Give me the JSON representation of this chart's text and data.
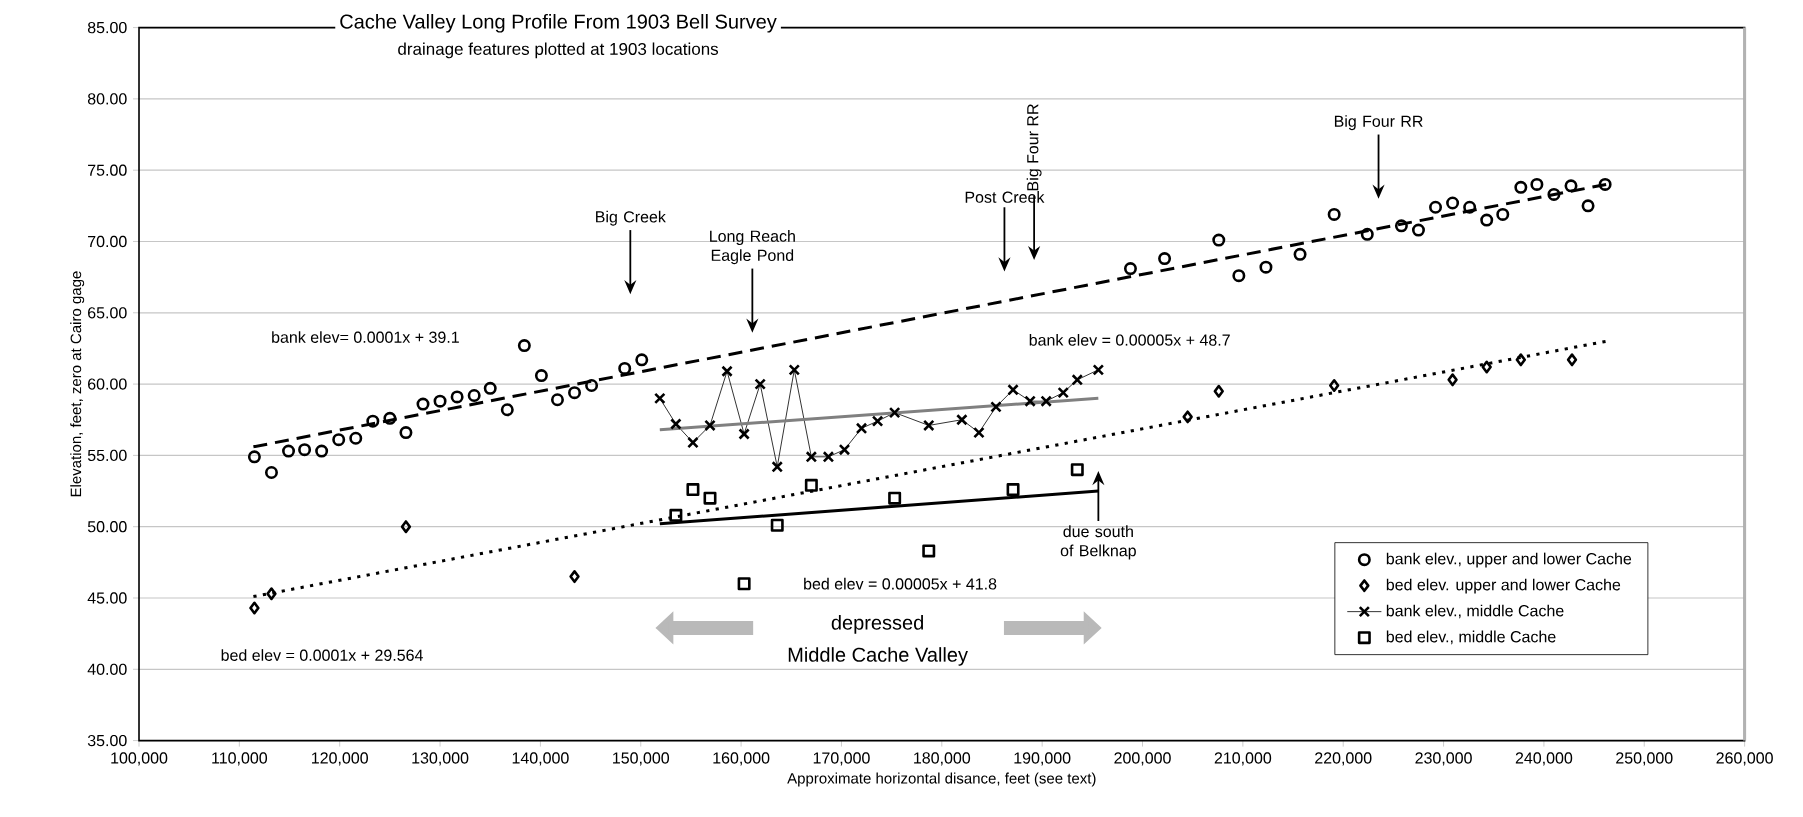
{
  "chart_data": {
    "type": "scatter",
    "title": "Cache Valley Long Profile From 1903 Bell Survey",
    "subtitle": "drainage features plotted at 1903 locations",
    "xlabel": "Approximate horizontal disance, feet (see text)",
    "ylabel": "Elevation, feet, zero at Cairo gage",
    "xlim": [
      100000,
      260000
    ],
    "ylim": [
      35,
      85
    ],
    "xticks": [
      {
        "value": 100000,
        "label": "100,000"
      },
      {
        "value": 110000,
        "label": "110,000"
      },
      {
        "value": 120000,
        "label": "120,000"
      },
      {
        "value": 130000,
        "label": "130,000"
      },
      {
        "value": 140000,
        "label": "140,000"
      },
      {
        "value": 150000,
        "label": "150,000"
      },
      {
        "value": 160000,
        "label": "160,000"
      },
      {
        "value": 170000,
        "label": "170,000"
      },
      {
        "value": 180000,
        "label": "180,000"
      },
      {
        "value": 190000,
        "label": "190,000"
      },
      {
        "value": 200000,
        "label": "200,000"
      },
      {
        "value": 210000,
        "label": "210,000"
      },
      {
        "value": 220000,
        "label": "220,000"
      },
      {
        "value": 230000,
        "label": "230,000"
      },
      {
        "value": 240000,
        "label": "240,000"
      },
      {
        "value": 250000,
        "label": "250,000"
      },
      {
        "value": 260000,
        "label": "260,000"
      }
    ],
    "yticks": [
      {
        "value": 35,
        "label": "35.00"
      },
      {
        "value": 40,
        "label": "40.00"
      },
      {
        "value": 45,
        "label": "45.00"
      },
      {
        "value": 50,
        "label": "50.00"
      },
      {
        "value": 55,
        "label": "55.00"
      },
      {
        "value": 60,
        "label": "60.00"
      },
      {
        "value": 65,
        "label": "65.00"
      },
      {
        "value": 70,
        "label": "70.00"
      },
      {
        "value": 75,
        "label": "75.00"
      },
      {
        "value": 80,
        "label": "80.00"
      },
      {
        "value": 85,
        "label": "85.00"
      }
    ],
    "grid": "y",
    "legend": "bottom right",
    "series": [
      {
        "name": "bank elev., upper and lower Cache",
        "marker": "circle",
        "color": "#000000",
        "x": [
          111500,
          113200,
          114900,
          116500,
          118200,
          119900,
          121600,
          123300,
          125000,
          126600,
          128300,
          130000,
          131700,
          133400,
          135000,
          136700,
          138400,
          140100,
          141700,
          143400,
          145100,
          148400,
          150100,
          198800,
          202200,
          207600,
          209600,
          212300,
          215700,
          219100,
          222400,
          225800,
          227500,
          229200,
          230900,
          232600,
          234300,
          235900,
          237700,
          239300,
          241000,
          242700,
          244400,
          246100
        ],
        "values": [
          54.9,
          53.8,
          55.3,
          55.4,
          55.3,
          56.1,
          56.2,
          57.4,
          57.6,
          56.6,
          58.6,
          58.8,
          59.1,
          59.2,
          59.7,
          58.2,
          62.7,
          60.6,
          58.9,
          59.4,
          59.9,
          61.1,
          61.7,
          68.1,
          68.8,
          70.1,
          67.6,
          68.2,
          69.1,
          71.9,
          70.5,
          71.1,
          70.8,
          72.4,
          72.7,
          72.4,
          71.5,
          71.9,
          73.8,
          74.0,
          73.3,
          73.9,
          72.5,
          74.0
        ]
      },
      {
        "name": "bed elev. upper and lower Cache",
        "marker": "diamond",
        "color": "#000000",
        "x": [
          111500,
          113200,
          126600,
          143400,
          204500,
          207600,
          219100,
          230900,
          234300,
          237700,
          242800
        ],
        "values": [
          44.3,
          45.3,
          50.0,
          46.5,
          57.7,
          59.5,
          59.9,
          60.3,
          61.2,
          61.7,
          61.7
        ]
      },
      {
        "name": "bank elev., middle Cache",
        "type": "line",
        "marker": "cross",
        "color": "#000000",
        "x": [
          151900,
          153500,
          155200,
          156900,
          158600,
          160300,
          161900,
          163600,
          165300,
          167000,
          168700,
          170300,
          172000,
          173600,
          175300,
          178700,
          182000,
          183700,
          185400,
          187100,
          188800,
          190400,
          192100,
          193500,
          195600
        ],
        "values": [
          59.0,
          57.2,
          55.9,
          57.1,
          60.9,
          56.5,
          60.0,
          54.2,
          61.0,
          54.9,
          54.9,
          55.4,
          56.9,
          57.4,
          58.0,
          57.1,
          57.5,
          56.6,
          58.4,
          59.6,
          58.8,
          58.8,
          59.4,
          60.3,
          61.0
        ]
      },
      {
        "name": "bed elev., middle Cache",
        "marker": "square",
        "color": "#000000",
        "x": [
          153500,
          155200,
          156900,
          160300,
          163600,
          167000,
          175300,
          178700,
          187100,
          193500
        ],
        "values": [
          50.8,
          52.6,
          52.0,
          46.0,
          50.1,
          52.9,
          52.0,
          48.3,
          52.6,
          54.0
        ]
      },
      {
        "type": "line",
        "marker": "none",
        "line_style": "dashed",
        "color": "#000000",
        "x": [
          111400,
          246200
        ],
        "values": [
          55.6,
          74.0
        ]
      },
      {
        "type": "line",
        "marker": "none",
        "line_style": "dotted",
        "color": "#000000",
        "x": [
          111400,
          246200
        ],
        "values": [
          45.1,
          63.0
        ]
      },
      {
        "type": "line",
        "marker": "none",
        "line_style": "solid",
        "color": "#808080",
        "x": [
          151900,
          195600
        ],
        "values": [
          56.8,
          59.0
        ]
      },
      {
        "type": "line",
        "marker": "none",
        "line_style": "solid",
        "color": "#000000",
        "x": [
          151900,
          195600
        ],
        "values": [
          50.2,
          52.5
        ]
      }
    ],
    "annotations": [
      "bank elev= 0.0001x + 39.1",
      "bank elev = 0.00005x + 48.7",
      "bed elev = 0.00005x + 41.8",
      "bed elev = 0.0001x + 29.564",
      "Big Creek",
      "Long Reach Eagle Pond",
      "Post Creek",
      "Big Four RR",
      "Big Four RR",
      "due south of Belknap",
      "depressed",
      "Middle Cache Valley"
    ]
  }
}
